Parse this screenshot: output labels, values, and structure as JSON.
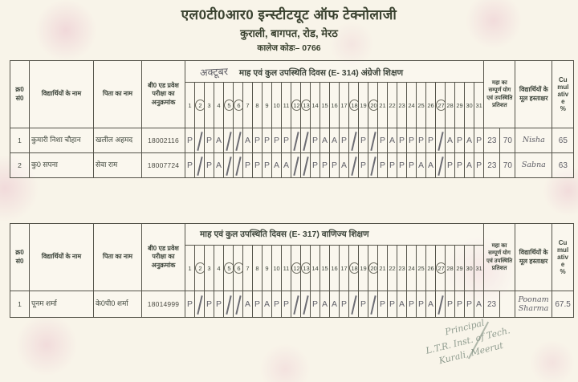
{
  "header": {
    "title": "एल0टी0आर0 इन्स्टीटयूट ऑफ टेक्नोलाजी",
    "address": "कुराली, बागपत, रोड, मेरठ",
    "college_code": "कालेज कोडः– 0766"
  },
  "columns": {
    "sr": "क्र0 सं0",
    "student_name": "विद्यार्थियों के नाम",
    "father_name": "पिता का नाम",
    "roll": "बी0 एड प्रवेश परीक्षा का अनुक्रमांक",
    "month_total": "महा का सम्पूर्ण योग एवं उपस्थिति प्रतिशत",
    "signature": "विद्यार्थियों के मूल हस्ताक्षर",
    "cumulative": "Cu\nmul\nativ\ne\n%"
  },
  "days": [
    1,
    2,
    3,
    4,
    5,
    6,
    7,
    8,
    9,
    10,
    11,
    12,
    13,
    14,
    15,
    16,
    17,
    18,
    19,
    20,
    21,
    22,
    23,
    24,
    25,
    26,
    27,
    28,
    29,
    30,
    31
  ],
  "circled_days": [
    2,
    5,
    6,
    12,
    13,
    18,
    20,
    27
  ],
  "tables": [
    {
      "month_handwritten": "अक्टूबर",
      "span_header": "माह एवं कुल उपस्थिति दिवस (E- 314) अंग्रेजी शिक्षण",
      "rows": [
        {
          "sr": "1",
          "name": "कुमारी निशा चौहान",
          "father": "खलील अहमद",
          "roll": "18002116",
          "attendance": [
            "P",
            "/",
            "P",
            "A",
            "/",
            "/",
            "A",
            "P",
            "P",
            "P",
            "P",
            "/",
            "/",
            "P",
            "A",
            "A",
            "P",
            "/",
            "P",
            "/",
            "P",
            "A",
            "P",
            "P",
            "P",
            "P",
            "/",
            "A",
            "P",
            "A",
            "P"
          ],
          "total": "23",
          "percent": "70",
          "signature": "Nisha",
          "cumulative": "65"
        },
        {
          "sr": "2",
          "name": "कु0 सपना",
          "father": "सेवा राम",
          "roll": "18007724",
          "attendance": [
            "P",
            "/",
            "P",
            "A",
            "/",
            "/",
            "P",
            "P",
            "P",
            "A",
            "A",
            "/",
            "/",
            "P",
            "P",
            "P",
            "A",
            "/",
            "P",
            "/",
            "P",
            "P",
            "P",
            "P",
            "A",
            "A",
            "/",
            "P",
            "P",
            "A",
            "P"
          ],
          "total": "23",
          "percent": "70",
          "signature": "Sabna",
          "cumulative": "63"
        }
      ]
    },
    {
      "month_handwritten": "",
      "span_header": "माह एवं कुल उपस्थिति दिवस (E- 317)  वाणिज्य शिक्षण",
      "rows": [
        {
          "sr": "1",
          "name": "पूनम शर्मा",
          "father": "के0पी0 शर्मा",
          "roll": "18014999",
          "attendance": [
            "P",
            "/",
            "P",
            "P",
            "/",
            "/",
            "A",
            "P",
            "A",
            "P",
            "P",
            "/",
            "/",
            "P",
            "A",
            "A",
            "P",
            "/",
            "P",
            "/",
            "P",
            "P",
            "A",
            "P",
            "P",
            "A",
            "/",
            "P",
            "P",
            "P",
            "A"
          ],
          "total": "23",
          "percent": "",
          "signature": "Poonam Sharma",
          "cumulative": "67.5"
        }
      ]
    }
  ],
  "stamp": {
    "line1": "Principal",
    "line2": "L.T.R. Inst. of Tech.",
    "line3": "Kurali, Meerut"
  },
  "colors": {
    "paper": "#f8f4e9",
    "printed_ink": "#3e463c",
    "pencil": "#62626a",
    "stamp": "#7f8e81"
  }
}
